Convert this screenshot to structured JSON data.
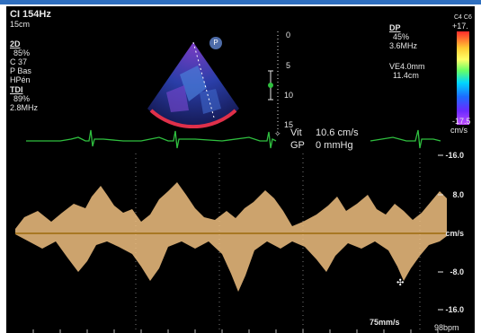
{
  "header": {
    "mode": "CI 154Hz",
    "depth": "15cm"
  },
  "settings_2d": {
    "title": "2D",
    "lines": [
      "85%",
      "C 37",
      "P Bas",
      "HPén"
    ]
  },
  "settings_tdi": {
    "title": "TDI",
    "lines": [
      "89%",
      "2.8MHz"
    ]
  },
  "settings_dp": {
    "title": "DP",
    "lines": [
      "45%",
      "3.6MHz",
      "",
      "VE4.0mm",
      "11.4cm"
    ]
  },
  "color_scale": {
    "label_top": "C4 C6",
    "max": "+17.",
    "min": "-17.5",
    "unit": "cm/s"
  },
  "depth_scale": [
    "0",
    "5",
    "10",
    "15"
  ],
  "probe_badge": "P",
  "measurements": {
    "vit_label": "Vit",
    "vit_value": "10.6 cm/s",
    "gp_label": "GP",
    "gp_value": "0 mmHg"
  },
  "velocity_scale": {
    "labels": [
      "-16.0",
      "8.0",
      "cm/s",
      "-8.0",
      "-16.0"
    ]
  },
  "footer": {
    "sweep": "75mm/s",
    "heart_rate": "98bpm"
  },
  "colors": {
    "background": "#000000",
    "ecg": "#2fbf3f",
    "doppler": "#f0c080",
    "baseline": "#e0a030"
  }
}
